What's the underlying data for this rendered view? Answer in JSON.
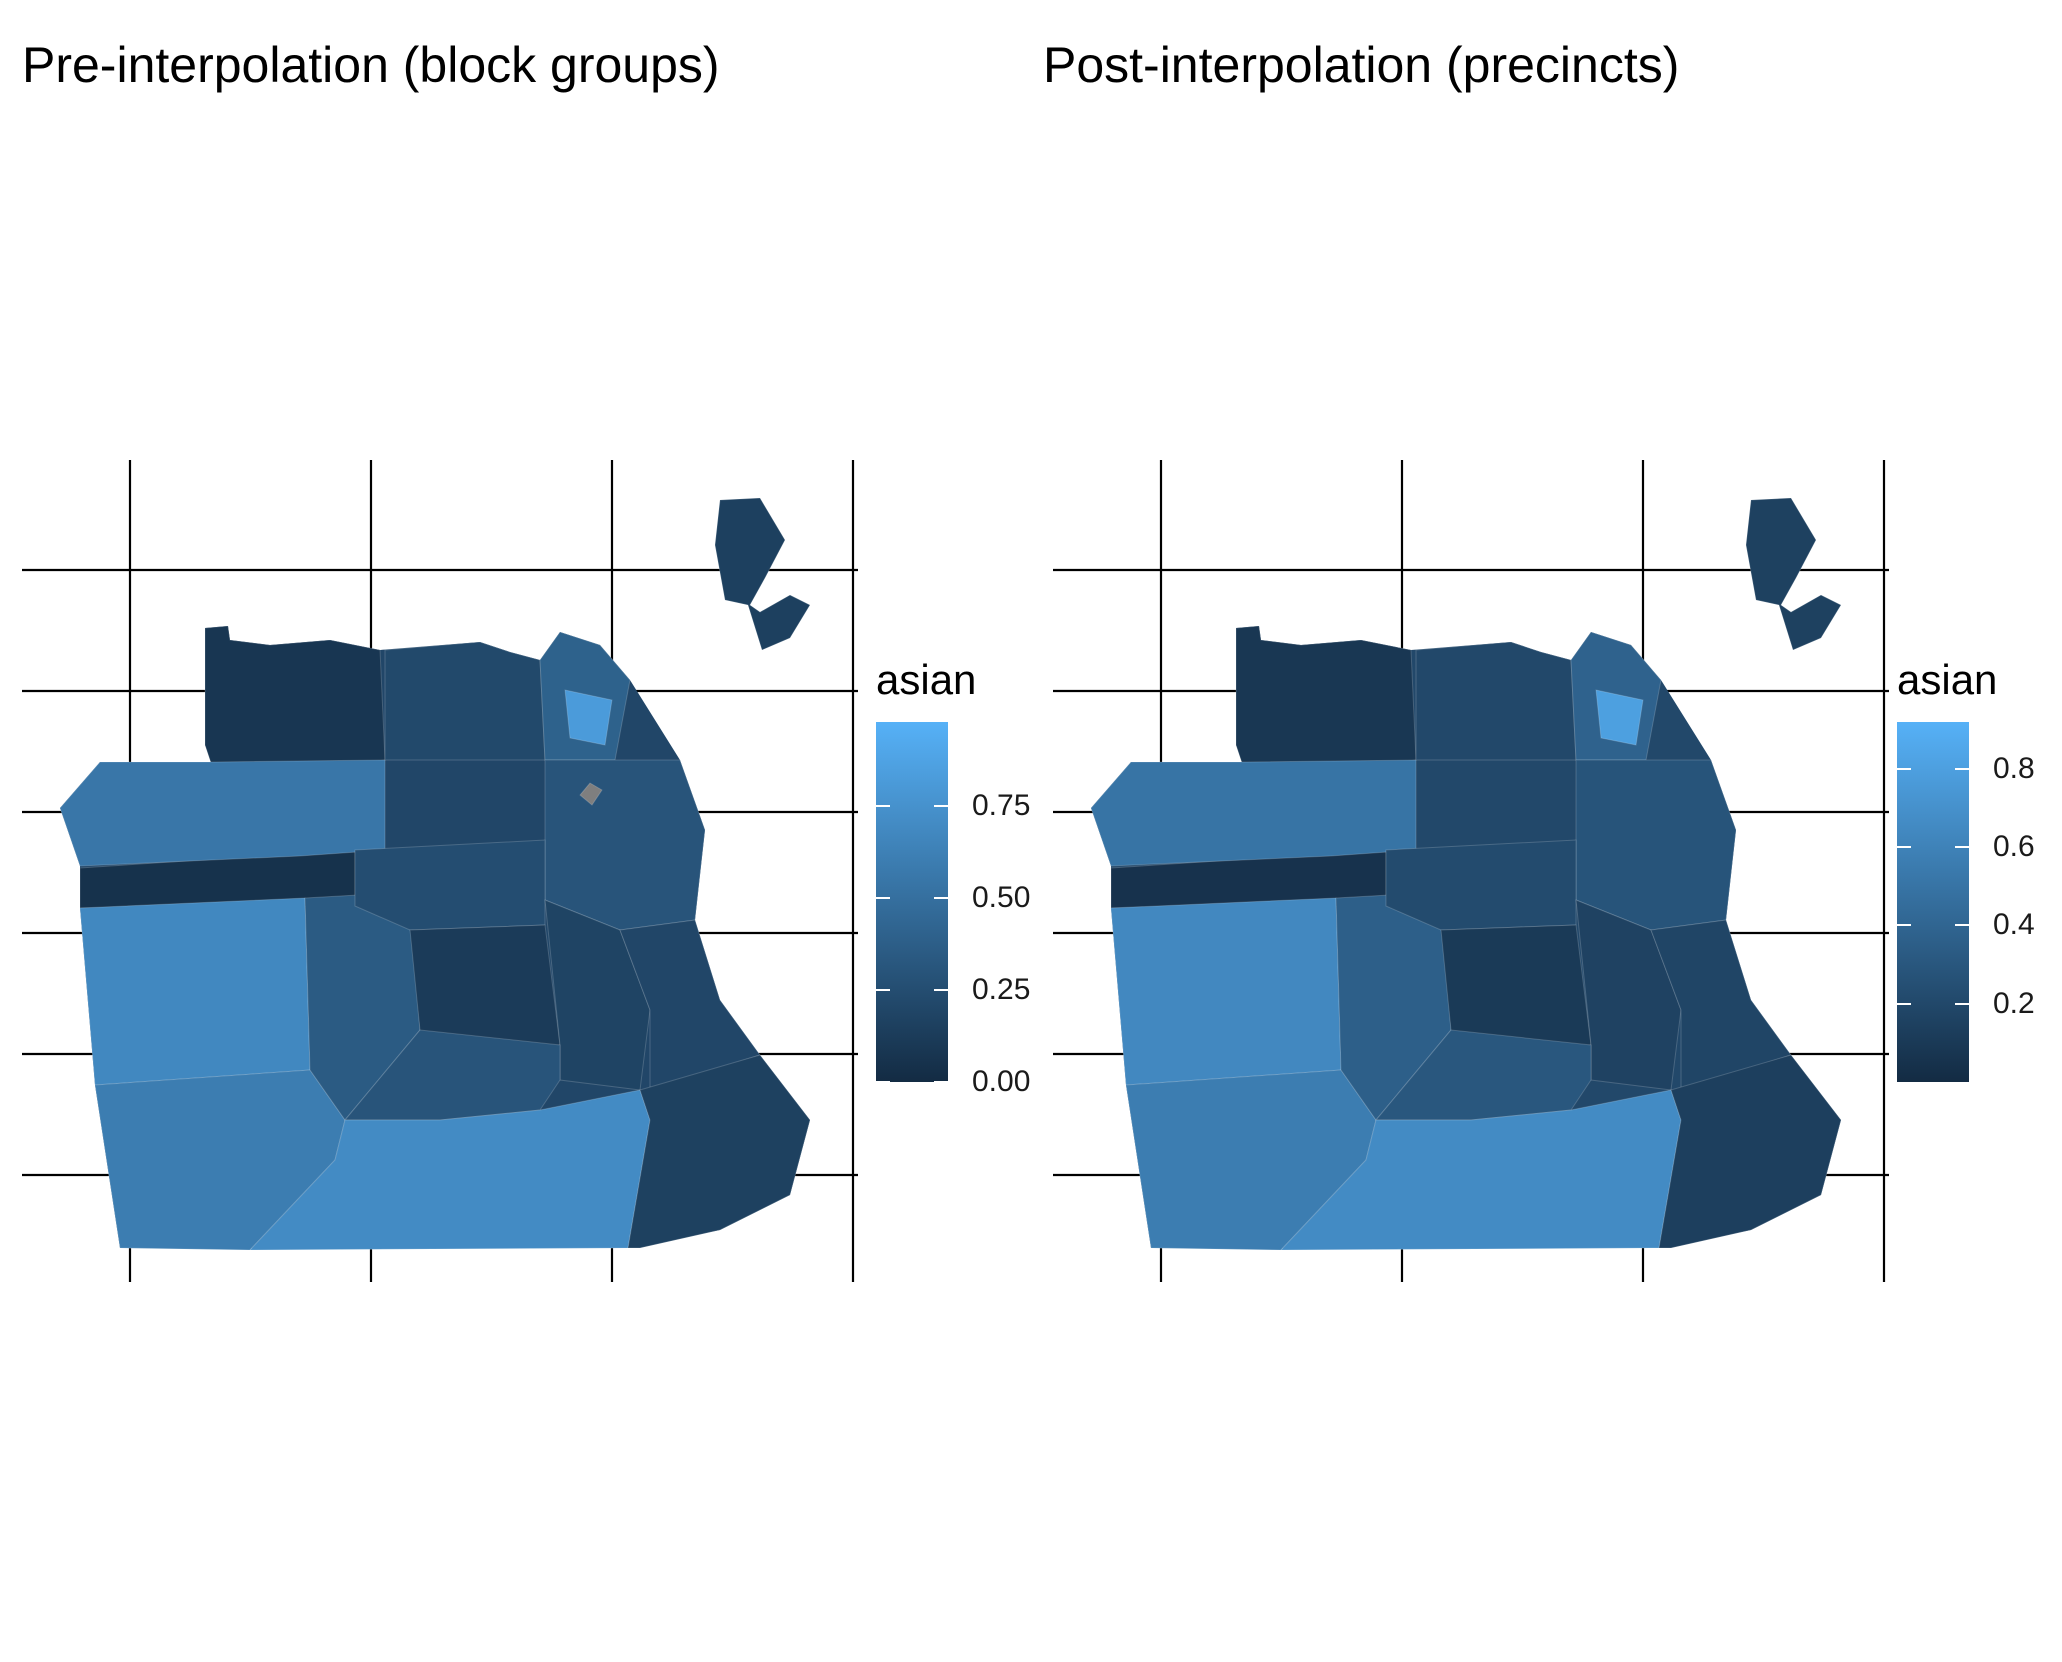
{
  "figure": {
    "panels": [
      {
        "id": "pre",
        "title": "Pre-interpolation (block groups)",
        "legend": {
          "title": "asian",
          "scale_min": 0.0,
          "scale_max": 0.98,
          "ticks": [
            {
              "value": 0.0,
              "label": "0.00"
            },
            {
              "value": 0.25,
              "label": "0.25"
            },
            {
              "value": 0.5,
              "label": "0.50"
            },
            {
              "value": 0.75,
              "label": "0.75"
            }
          ],
          "low_color": "#132b43",
          "high_color": "#56b1f7",
          "na_color": "#7f7f7f"
        },
        "regions": {
          "presidio": 0.08,
          "golden_gate_park": 0.05,
          "richmond": 0.55,
          "sunset": 0.68,
          "sunset_south": 0.6,
          "west_portal_lakeshore": 0.35,
          "marina_pacific_heights": 0.22,
          "north_beach": 0.4,
          "chinatown": 0.82,
          "downtown_soma": 0.3,
          "western_addition": 0.25,
          "castro_noe": 0.12,
          "mission": 0.18,
          "bernal_heights": 0.3,
          "potrero_dogpatch": 0.2,
          "excelsior_visitacion": 0.7,
          "bayview_hunters_point": 0.16,
          "treasure_island": 0.15,
          "missing_tract": null
        }
      },
      {
        "id": "post",
        "title": "Post-interpolation (precincts)",
        "legend": {
          "title": "asian",
          "scale_min": 0.0,
          "scale_max": 0.92,
          "ticks": [
            {
              "value": 0.2,
              "label": "0.2"
            },
            {
              "value": 0.4,
              "label": "0.4"
            },
            {
              "value": 0.6,
              "label": "0.6"
            },
            {
              "value": 0.8,
              "label": "0.8"
            }
          ],
          "low_color": "#132b43",
          "high_color": "#56b1f7"
        },
        "regions": {
          "presidio": 0.08,
          "golden_gate_park": 0.05,
          "richmond": 0.5,
          "sunset": 0.64,
          "sunset_south": 0.56,
          "west_portal_lakeshore": 0.36,
          "marina_pacific_heights": 0.2,
          "north_beach": 0.38,
          "chinatown": 0.8,
          "downtown_soma": 0.28,
          "western_addition": 0.22,
          "castro_noe": 0.1,
          "mission": 0.16,
          "bernal_heights": 0.3,
          "potrero_dogpatch": 0.18,
          "excelsior_visitacion": 0.66,
          "bayview_hunters_point": 0.14,
          "treasure_island": 0.15
        }
      }
    ]
  }
}
